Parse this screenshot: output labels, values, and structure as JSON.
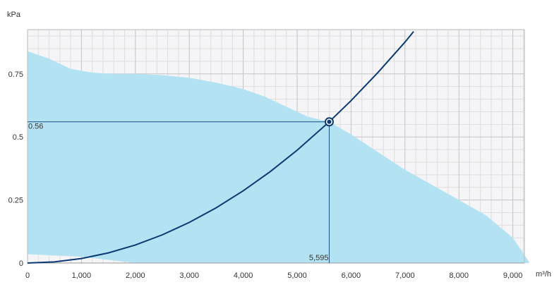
{
  "chart_data": {
    "type": "line",
    "title": "",
    "xlabel": "m³/h",
    "ylabel": "kPa",
    "xlim": [
      0,
      9300
    ],
    "ylim": [
      0,
      1.1
    ],
    "grid": true,
    "x_ticks": [
      0,
      1000,
      2000,
      3000,
      4000,
      5000,
      6000,
      7000,
      8000,
      9000
    ],
    "x_tick_labels": [
      "0",
      "1,000",
      "2,000",
      "3,000",
      "4,000",
      "5,000",
      "6,000",
      "7,000",
      "8,000",
      "9,000"
    ],
    "y_ticks": [
      0,
      0.25,
      0.5,
      0.75
    ],
    "y_tick_labels": [
      "0",
      "0.25",
      "0.5",
      "0.75"
    ],
    "colors": {
      "operating_area": "#b3e3f2",
      "system_curve": "#0b3a73",
      "guide_lines": "#1a4d80",
      "grid": "#d0d0d0",
      "plot_background": "#f5f5f7"
    },
    "operating_area": {
      "upper": [
        [
          0,
          0.84
        ],
        [
          400,
          0.81
        ],
        [
          800,
          0.77
        ],
        [
          1200,
          0.755
        ],
        [
          1600,
          0.75
        ],
        [
          2000,
          0.75
        ],
        [
          2500,
          0.745
        ],
        [
          3000,
          0.735
        ],
        [
          3500,
          0.715
        ],
        [
          4000,
          0.69
        ],
        [
          4400,
          0.66
        ],
        [
          4800,
          0.62
        ],
        [
          5200,
          0.58
        ],
        [
          5595,
          0.56
        ],
        [
          6000,
          0.51
        ],
        [
          6500,
          0.44
        ],
        [
          7000,
          0.37
        ],
        [
          7500,
          0.31
        ],
        [
          8000,
          0.25
        ],
        [
          8500,
          0.19
        ],
        [
          9000,
          0.1
        ],
        [
          9300,
          0.005
        ]
      ],
      "lower": [
        [
          9300,
          0
        ],
        [
          2000,
          0
        ],
        [
          1600,
          0.01
        ],
        [
          1000,
          0.025
        ],
        [
          500,
          0.03
        ],
        [
          0,
          0.035
        ]
      ]
    },
    "series": [
      {
        "type": "system_curve",
        "x": [
          0,
          500,
          1000,
          1500,
          2000,
          2500,
          3000,
          3500,
          4000,
          4500,
          5000,
          5595,
          6000,
          6500,
          7000,
          7160
        ],
        "y": [
          0,
          0.0045,
          0.0179,
          0.0403,
          0.0716,
          0.1119,
          0.1611,
          0.2193,
          0.2864,
          0.3625,
          0.4475,
          0.56,
          0.644,
          0.756,
          0.876,
          0.918
        ]
      }
    ],
    "operating_point": {
      "x": 5595,
      "y": 0.56,
      "x_label": "5,595",
      "y_label": "0.56"
    }
  }
}
